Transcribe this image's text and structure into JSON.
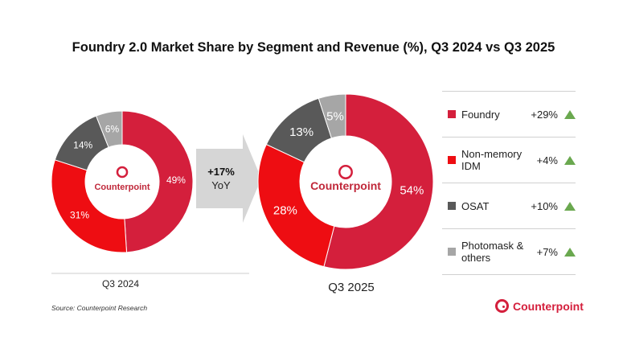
{
  "chart_data": [
    {
      "type": "pie",
      "donut": true,
      "title": "Foundry 2.0 Market Share by Segment and Revenue (%), Q3 2024 vs Q3 2025",
      "label": "Q3 2024",
      "categories": [
        "Foundry",
        "Non-memory IDM",
        "OSAT",
        "Photomask & others"
      ],
      "values": [
        49,
        31,
        14,
        6
      ],
      "data_labels": [
        "49%",
        "31%",
        "14%",
        "6%"
      ],
      "center_text": "Counterpoint"
    },
    {
      "type": "pie",
      "donut": true,
      "label": "Q3 2025",
      "categories": [
        "Foundry",
        "Non-memory IDM",
        "OSAT",
        "Photomask & others"
      ],
      "values": [
        54,
        28,
        13,
        5
      ],
      "data_labels": [
        "54%",
        "28%",
        "13%",
        "5%"
      ],
      "center_text": "Counterpoint"
    }
  ],
  "colors": [
    "#d41f3c",
    "#ee0d12",
    "#595959",
    "#a6a6a6"
  ],
  "growth_arrow": {
    "line1": "+17%",
    "line2": "YoY"
  },
  "legend": [
    {
      "name": "Foundry",
      "change": "+29%",
      "trend": "up"
    },
    {
      "name": "Non-memory IDM",
      "change": "+4%",
      "trend": "up"
    },
    {
      "name": "OSAT",
      "change": "+10%",
      "trend": "up"
    },
    {
      "name": "Photomask & others",
      "change": "+7%",
      "trend": "up"
    }
  ],
  "source": "Source: Counterpoint Research",
  "logo_text": "Counterpoint"
}
